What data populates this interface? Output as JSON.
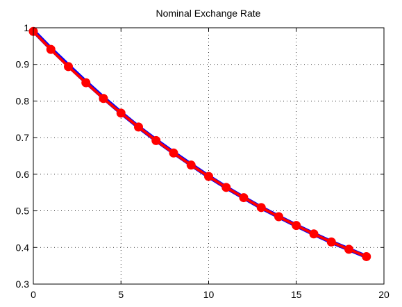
{
  "chart_data": {
    "type": "line",
    "title": "Nominal Exchange Rate",
    "xlabel": "",
    "ylabel": "",
    "xlim": [
      0,
      20
    ],
    "ylim": [
      0.3,
      1
    ],
    "grid": true,
    "x_ticks": [
      0,
      5,
      10,
      15,
      20
    ],
    "y_ticks": [
      0.3,
      0.4,
      0.5,
      0.6,
      0.7,
      0.8,
      0.9,
      1
    ],
    "x_tick_labels": [
      "0",
      "5",
      "10",
      "15",
      "20"
    ],
    "y_tick_labels": [
      "0.3",
      "0.4",
      "0.5",
      "0.6",
      "0.7",
      "0.8",
      "0.9",
      "1"
    ],
    "x": [
      0,
      1,
      2,
      3,
      4,
      5,
      6,
      7,
      8,
      9,
      10,
      11,
      12,
      13,
      14,
      15,
      16,
      17,
      18,
      19
    ],
    "series": [
      {
        "color": "#0000ff",
        "marker": "none",
        "values": [
          0.992,
          0.943,
          0.897,
          0.852,
          0.809,
          0.768,
          0.729,
          0.693,
          0.659,
          0.626,
          0.594,
          0.564,
          0.536,
          0.509,
          0.484,
          0.46,
          0.437,
          0.415,
          0.395,
          0.375
        ]
      },
      {
        "color": "#ff0000",
        "marker": "circle",
        "values": [
          0.99,
          0.941,
          0.894,
          0.85,
          0.807,
          0.767,
          0.729,
          0.692,
          0.658,
          0.625,
          0.594,
          0.564,
          0.536,
          0.509,
          0.484,
          0.46,
          0.437,
          0.415,
          0.395,
          0.375
        ]
      }
    ]
  }
}
